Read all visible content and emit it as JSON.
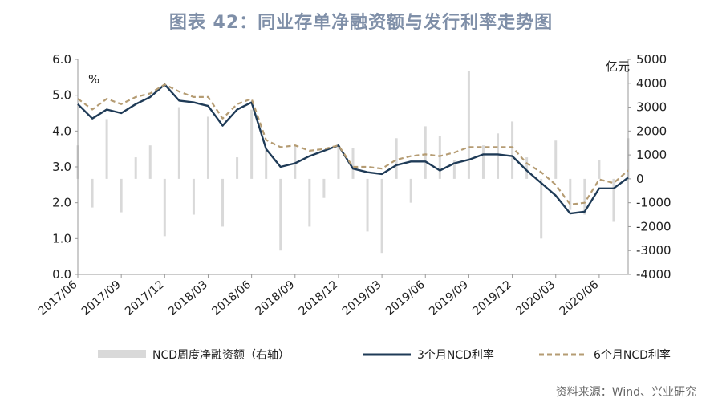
{
  "header": {
    "title": "图表 42：同业存单净融资额与发行利率走势图",
    "source": "资料来源：Wind、兴业研究"
  },
  "chart_data": {
    "type": "line",
    "title": "图表 42：同业存单净融资额与发行利率走势图",
    "ylabel_left": "%",
    "ylabel_right": "亿元",
    "ylim_left": [
      0,
      6
    ],
    "ylim_right": [
      -4000,
      5000
    ],
    "yticks_left": [
      "0.0",
      "1.0",
      "2.0",
      "3.0",
      "4.0",
      "5.0",
      "6.0"
    ],
    "yticks_right": [
      "-4000",
      "-3000",
      "-2000",
      "-1000",
      "0",
      "1000",
      "2000",
      "3000",
      "4000",
      "5000"
    ],
    "x_ticks": [
      "2017/06",
      "2017/09",
      "2017/12",
      "2018/03",
      "2018/06",
      "2018/09",
      "2018/12",
      "2019/03",
      "2019/06",
      "2019/09",
      "2019/12",
      "2020/03",
      "2020/06"
    ],
    "x_range": [
      "2017/06",
      "2020/08"
    ],
    "grid": false,
    "legend_position": "bottom",
    "series": [
      {
        "name": "3个月NCD利率",
        "type": "line",
        "axis": "left",
        "color": "#1f3b57",
        "x": [
          "2017/06",
          "2017/07",
          "2017/08",
          "2017/09",
          "2017/10",
          "2017/11",
          "2017/12",
          "2018/01",
          "2018/02",
          "2018/03",
          "2018/04",
          "2018/05",
          "2018/06",
          "2018/07",
          "2018/08",
          "2018/09",
          "2018/10",
          "2018/11",
          "2018/12",
          "2019/01",
          "2019/02",
          "2019/03",
          "2019/04",
          "2019/05",
          "2019/06",
          "2019/07",
          "2019/08",
          "2019/09",
          "2019/10",
          "2019/11",
          "2019/12",
          "2020/01",
          "2020/02",
          "2020/03",
          "2020/04",
          "2020/05",
          "2020/06",
          "2020/07",
          "2020/08"
        ],
        "values": [
          4.75,
          4.35,
          4.6,
          4.5,
          4.75,
          4.95,
          5.3,
          4.85,
          4.8,
          4.7,
          4.15,
          4.6,
          4.8,
          3.5,
          3.0,
          3.1,
          3.3,
          3.45,
          3.6,
          2.95,
          2.85,
          2.8,
          3.05,
          3.15,
          3.15,
          2.9,
          3.1,
          3.2,
          3.35,
          3.35,
          3.3,
          2.9,
          2.55,
          2.2,
          1.7,
          1.75,
          2.4,
          2.4,
          2.7
        ]
      },
      {
        "name": "6个月NCD利率",
        "type": "line",
        "axis": "left",
        "color": "#b59c73",
        "x": [
          "2017/06",
          "2017/07",
          "2017/08",
          "2017/09",
          "2017/10",
          "2017/11",
          "2017/12",
          "2018/01",
          "2018/02",
          "2018/03",
          "2018/04",
          "2018/05",
          "2018/06",
          "2018/07",
          "2018/08",
          "2018/09",
          "2018/10",
          "2018/11",
          "2018/12",
          "2019/01",
          "2019/02",
          "2019/03",
          "2019/04",
          "2019/05",
          "2019/06",
          "2019/07",
          "2019/08",
          "2019/09",
          "2019/10",
          "2019/11",
          "2019/12",
          "2020/01",
          "2020/02",
          "2020/03",
          "2020/04",
          "2020/05",
          "2020/06",
          "2020/07",
          "2020/08"
        ],
        "values": [
          4.9,
          4.6,
          4.9,
          4.75,
          4.95,
          5.05,
          5.3,
          5.1,
          4.95,
          4.95,
          4.35,
          4.75,
          4.9,
          3.75,
          3.55,
          3.6,
          3.45,
          3.5,
          3.6,
          3.0,
          3.0,
          2.95,
          3.2,
          3.3,
          3.35,
          3.3,
          3.4,
          3.55,
          3.55,
          3.55,
          3.55,
          3.1,
          2.85,
          2.5,
          1.95,
          2.0,
          2.65,
          2.55,
          2.9
        ]
      },
      {
        "name": "NCD周度净融资额（右轴）",
        "type": "bar",
        "axis": "right",
        "color": "#d9d9d9",
        "x": [
          "2017/06",
          "2017/07",
          "2017/08",
          "2017/09",
          "2017/10",
          "2017/11",
          "2017/12",
          "2018/01",
          "2018/02",
          "2018/03",
          "2018/04",
          "2018/05",
          "2018/06",
          "2018/07",
          "2018/08",
          "2018/09",
          "2018/10",
          "2018/11",
          "2018/12",
          "2019/01",
          "2019/02",
          "2019/03",
          "2019/04",
          "2019/05",
          "2019/06",
          "2019/07",
          "2019/08",
          "2019/09",
          "2019/10",
          "2019/11",
          "2019/12",
          "2020/01",
          "2020/02",
          "2020/03",
          "2020/04",
          "2020/05",
          "2020/06",
          "2020/07",
          "2020/08"
        ],
        "values": [
          1400,
          -1200,
          2500,
          -1400,
          900,
          1400,
          -2400,
          3000,
          -1500,
          2600,
          -2000,
          900,
          2900,
          1200,
          -3000,
          1400,
          -2000,
          -800,
          1400,
          1300,
          -2200,
          -3100,
          1700,
          -1000,
          2200,
          1800,
          800,
          4500,
          1400,
          1900,
          2400,
          900,
          -2500,
          1600,
          -1300,
          -1500,
          800,
          -1800,
          1700
        ]
      }
    ]
  }
}
